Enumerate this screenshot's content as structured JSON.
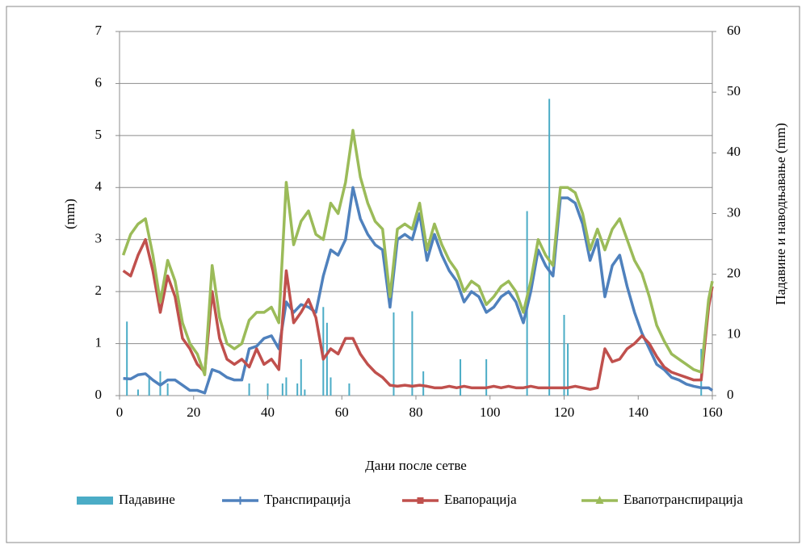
{
  "chart_data": {
    "type": "line",
    "xlabel": "Дани после сетве",
    "ylabel": "(mm)",
    "y2label": "Падавине и наводњавање (mm)",
    "x": [
      1,
      3,
      5,
      7,
      9,
      11,
      13,
      15,
      17,
      19,
      21,
      23,
      25,
      27,
      29,
      31,
      33,
      35,
      37,
      39,
      41,
      43,
      45,
      47,
      49,
      51,
      53,
      55,
      57,
      59,
      61,
      63,
      65,
      67,
      69,
      71,
      73,
      75,
      77,
      79,
      81,
      83,
      85,
      87,
      89,
      91,
      93,
      95,
      97,
      99,
      101,
      103,
      105,
      107,
      109,
      111,
      113,
      115,
      117,
      119,
      121,
      123,
      125,
      127,
      129,
      131,
      133,
      135,
      137,
      139,
      141,
      143,
      145,
      147,
      149,
      151,
      153,
      155,
      157,
      159,
      160
    ],
    "series": [
      {
        "name": "Падавине",
        "type": "bar",
        "axis": "y2",
        "color": "#4bacc6",
        "x": [
          2,
          5,
          8,
          11,
          13,
          35,
          40,
          44,
          45,
          48,
          49,
          50,
          55,
          56,
          57,
          62,
          74,
          79,
          82,
          92,
          99,
          110,
          116,
          120,
          121,
          157
        ],
        "values": [
          12.2,
          1,
          3,
          4,
          2,
          2,
          2,
          2,
          3,
          2,
          6,
          1,
          14.6,
          12,
          3,
          2,
          13.7,
          13.9,
          4,
          6,
          6,
          30.4,
          48.9,
          13.3,
          8.6,
          7.7
        ]
      },
      {
        "name": "Транспирација",
        "color": "#4f81bd",
        "values": [
          0.33,
          0.32,
          0.4,
          0.42,
          0.3,
          0.2,
          0.3,
          0.3,
          0.2,
          0.1,
          0.1,
          0.05,
          0.5,
          0.45,
          0.35,
          0.3,
          0.3,
          0.9,
          0.95,
          1.1,
          1.15,
          0.9,
          1.8,
          1.6,
          1.75,
          1.7,
          1.6,
          2.3,
          2.8,
          2.7,
          3.0,
          4.0,
          3.4,
          3.1,
          2.9,
          2.8,
          1.7,
          3.0,
          3.1,
          3.0,
          3.5,
          2.6,
          3.1,
          2.7,
          2.4,
          2.2,
          1.8,
          2.0,
          1.9,
          1.6,
          1.7,
          1.9,
          2.0,
          1.8,
          1.4,
          2.0,
          2.8,
          2.5,
          2.3,
          3.8,
          3.8,
          3.7,
          3.3,
          2.6,
          3.0,
          1.9,
          2.5,
          2.7,
          2.1,
          1.6,
          1.2,
          0.9,
          0.6,
          0.5,
          0.35,
          0.3,
          0.22,
          0.18,
          0.15,
          0.15,
          0.1
        ]
      },
      {
        "name": "Евапорација",
        "color": "#c0504d",
        "values": [
          2.4,
          2.3,
          2.7,
          3.0,
          2.4,
          1.6,
          2.3,
          1.9,
          1.1,
          0.9,
          0.6,
          0.45,
          2.0,
          1.1,
          0.7,
          0.6,
          0.7,
          0.55,
          0.9,
          0.6,
          0.7,
          0.5,
          2.4,
          1.4,
          1.6,
          1.85,
          1.5,
          0.7,
          0.9,
          0.8,
          1.1,
          1.1,
          0.8,
          0.6,
          0.45,
          0.35,
          0.2,
          0.18,
          0.2,
          0.18,
          0.2,
          0.18,
          0.15,
          0.15,
          0.18,
          0.15,
          0.18,
          0.15,
          0.15,
          0.15,
          0.18,
          0.15,
          0.18,
          0.15,
          0.15,
          0.18,
          0.15,
          0.15,
          0.15,
          0.15,
          0.15,
          0.18,
          0.15,
          0.12,
          0.15,
          0.9,
          0.65,
          0.7,
          0.9,
          1.0,
          1.15,
          1.0,
          0.75,
          0.55,
          0.45,
          0.4,
          0.35,
          0.3,
          0.3,
          1.7,
          2.1
        ]
      },
      {
        "name": "Евапотранспирација",
        "color": "#9bbb59",
        "values": [
          2.7,
          3.1,
          3.3,
          3.4,
          2.7,
          1.8,
          2.6,
          2.2,
          1.4,
          1.0,
          0.8,
          0.4,
          2.5,
          1.5,
          1.0,
          0.9,
          1.0,
          1.45,
          1.6,
          1.6,
          1.7,
          1.4,
          4.1,
          2.9,
          3.35,
          3.55,
          3.1,
          3.0,
          3.7,
          3.5,
          4.1,
          5.1,
          4.2,
          3.7,
          3.35,
          3.2,
          1.9,
          3.2,
          3.3,
          3.2,
          3.7,
          2.8,
          3.3,
          2.9,
          2.6,
          2.4,
          2.0,
          2.2,
          2.1,
          1.75,
          1.9,
          2.1,
          2.2,
          2.0,
          1.6,
          2.2,
          3.0,
          2.7,
          2.5,
          4.0,
          4.0,
          3.9,
          3.5,
          2.8,
          3.2,
          2.8,
          3.2,
          3.4,
          3.0,
          2.6,
          2.35,
          1.9,
          1.35,
          1.05,
          0.8,
          0.7,
          0.6,
          0.5,
          0.45,
          1.85,
          2.2
        ]
      }
    ],
    "xlim": [
      0,
      160
    ],
    "xticks": [
      0,
      20,
      40,
      60,
      80,
      100,
      120,
      140,
      160
    ],
    "ylim": [
      0,
      7
    ],
    "yticks": [
      0,
      1,
      2,
      3,
      4,
      5,
      6,
      7
    ],
    "y2lim": [
      0,
      60
    ],
    "y2ticks": [
      0,
      10,
      20,
      30,
      40,
      50,
      60
    ],
    "grid": true,
    "legend": "bottom"
  }
}
